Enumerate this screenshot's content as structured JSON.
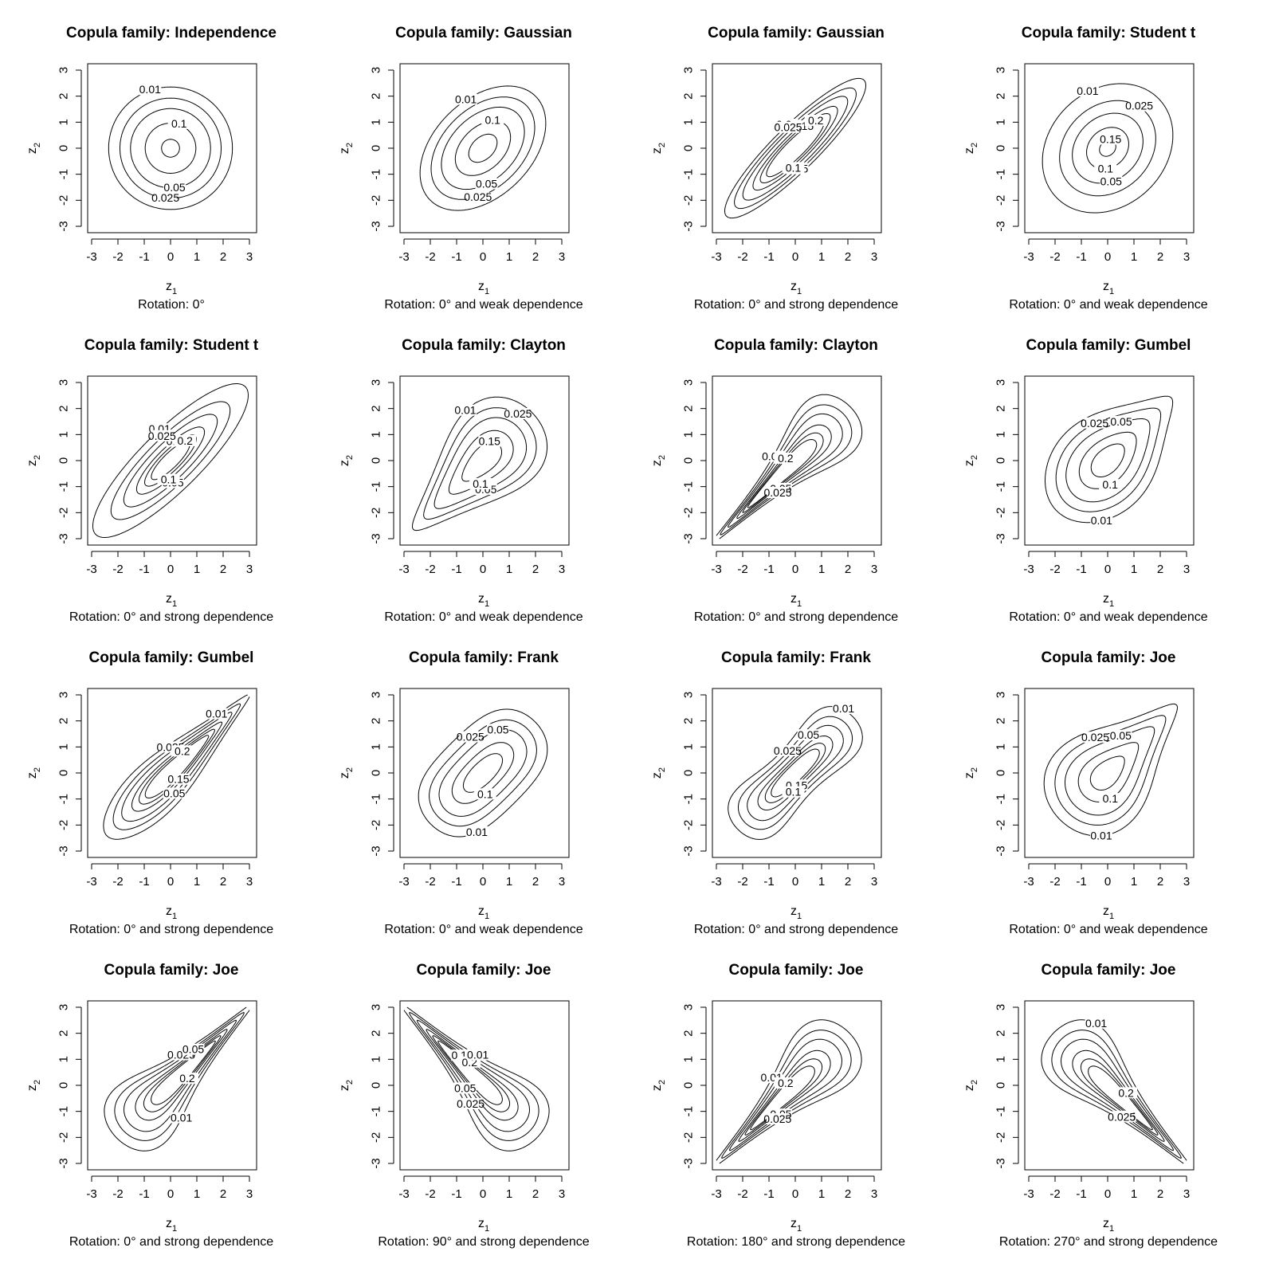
{
  "chart_data": [
    {
      "type": "contour",
      "title": "Copula family: Independence",
      "subtitle": "Rotation: 0°",
      "family": "independence",
      "rotation": 0,
      "dependence": "",
      "levels": [
        0.01,
        0.025,
        0.05,
        0.1,
        0.15
      ],
      "labeled_levels": [
        "0.01",
        "0.05",
        "0.1",
        "0.025"
      ],
      "xlabel": "z1",
      "ylabel": "z2",
      "xlim": [
        -3,
        3
      ],
      "ylim": [
        -3,
        3
      ],
      "xticks": [
        -3,
        -2,
        -1,
        0,
        1,
        2,
        3
      ],
      "yticks": [
        -3,
        -2,
        -1,
        0,
        1,
        2,
        3
      ]
    },
    {
      "type": "contour",
      "title": "Copula family: Gaussian",
      "subtitle": "Rotation: 0° and weak dependence",
      "family": "gaussian",
      "rotation": 0,
      "dependence": "weak",
      "levels": [
        0.01,
        0.025,
        0.05,
        0.1,
        0.15
      ],
      "labeled_levels": [
        "0.01",
        "0.05",
        "0.1",
        "0.025"
      ],
      "xlabel": "z1",
      "ylabel": "z2",
      "xlim": [
        -3,
        3
      ],
      "ylim": [
        -3,
        3
      ],
      "xticks": [
        -3,
        -2,
        -1,
        0,
        1,
        2,
        3
      ],
      "yticks": [
        -3,
        -2,
        -1,
        0,
        1,
        2,
        3
      ]
    },
    {
      "type": "contour",
      "title": "Copula family: Gaussian",
      "subtitle": "Rotation: 0° and strong dependence",
      "family": "gaussian",
      "rotation": 0,
      "dependence": "strong",
      "levels": [
        0.01,
        0.025,
        0.05,
        0.1,
        0.15,
        0.2
      ],
      "labeled_levels": [
        "0.01",
        "0.05",
        "0.15",
        "0.1",
        "0.2",
        "0.025"
      ],
      "xlabel": "z1",
      "ylabel": "z2",
      "xlim": [
        -3,
        3
      ],
      "ylim": [
        -3,
        3
      ],
      "xticks": [
        -3,
        -2,
        -1,
        0,
        1,
        2,
        3
      ],
      "yticks": [
        -3,
        -2,
        -1,
        0,
        1,
        2,
        3
      ]
    },
    {
      "type": "contour",
      "title": "Copula family: Student t",
      "subtitle": "Rotation: 0° and weak dependence",
      "family": "student",
      "rotation": 0,
      "dependence": "weak",
      "levels": [
        0.01,
        0.025,
        0.05,
        0.1,
        0.15
      ],
      "labeled_levels": [
        "0.01",
        "0.05",
        "0.15",
        "0.1",
        "0.025"
      ],
      "xlabel": "z1",
      "ylabel": "z2",
      "xlim": [
        -3,
        3
      ],
      "ylim": [
        -3,
        3
      ],
      "xticks": [
        -3,
        -2,
        -1,
        0,
        1,
        2,
        3
      ],
      "yticks": [
        -3,
        -2,
        -1,
        0,
        1,
        2,
        3
      ]
    },
    {
      "type": "contour",
      "title": "Copula family: Student t",
      "subtitle": "Rotation: 0° and strong dependence",
      "family": "student",
      "rotation": 0,
      "dependence": "strong",
      "levels": [
        0.01,
        0.025,
        0.05,
        0.1,
        0.15,
        0.2
      ],
      "labeled_levels": [
        "0.01",
        "0.05",
        "0.15",
        "0.1",
        "0.2",
        "0.025"
      ],
      "xlabel": "z1",
      "ylabel": "z2",
      "xlim": [
        -3,
        3
      ],
      "ylim": [
        -3,
        3
      ],
      "xticks": [
        -3,
        -2,
        -1,
        0,
        1,
        2,
        3
      ],
      "yticks": [
        -3,
        -2,
        -1,
        0,
        1,
        2,
        3
      ]
    },
    {
      "type": "contour",
      "title": "Copula family: Clayton",
      "subtitle": "Rotation: 0° and weak dependence",
      "family": "clayton",
      "rotation": 0,
      "dependence": "weak",
      "levels": [
        0.01,
        0.025,
        0.05,
        0.1,
        0.15
      ],
      "labeled_levels": [
        "0.01",
        "0.05",
        "0.15",
        "0.1",
        "0.025"
      ],
      "xlabel": "z1",
      "ylabel": "z2",
      "xlim": [
        -3,
        3
      ],
      "ylim": [
        -3,
        3
      ],
      "xticks": [
        -3,
        -2,
        -1,
        0,
        1,
        2,
        3
      ],
      "yticks": [
        -3,
        -2,
        -1,
        0,
        1,
        2,
        3
      ]
    },
    {
      "type": "contour",
      "title": "Copula family: Clayton",
      "subtitle": "Rotation: 0° and strong dependence",
      "family": "clayton",
      "rotation": 0,
      "dependence": "strong",
      "levels": [
        0.01,
        0.025,
        0.05,
        0.1,
        0.15,
        0.2
      ],
      "labeled_levels": [
        "0.01",
        "0.05",
        "0.2",
        "0.025"
      ],
      "xlabel": "z1",
      "ylabel": "z2",
      "xlim": [
        -3,
        3
      ],
      "ylim": [
        -3,
        3
      ],
      "xticks": [
        -3,
        -2,
        -1,
        0,
        1,
        2,
        3
      ],
      "yticks": [
        -3,
        -2,
        -1,
        0,
        1,
        2,
        3
      ]
    },
    {
      "type": "contour",
      "title": "Copula family: Gumbel",
      "subtitle": "Rotation: 0° and weak dependence",
      "family": "gumbel",
      "rotation": 0,
      "dependence": "weak",
      "levels": [
        0.01,
        0.025,
        0.05,
        0.1,
        0.15
      ],
      "labeled_levels": [
        "0.025",
        "0.1",
        "0.05",
        "0.01"
      ],
      "xlabel": "z1",
      "ylabel": "z2",
      "xlim": [
        -3,
        3
      ],
      "ylim": [
        -3,
        3
      ],
      "xticks": [
        -3,
        -2,
        -1,
        0,
        1,
        2,
        3
      ],
      "yticks": [
        -3,
        -2,
        -1,
        0,
        1,
        2,
        3
      ]
    },
    {
      "type": "contour",
      "title": "Copula family: Gumbel",
      "subtitle": "Rotation: 0° and strong dependence",
      "family": "gumbel",
      "rotation": 0,
      "dependence": "strong",
      "levels": [
        0.01,
        0.025,
        0.05,
        0.1,
        0.15,
        0.2
      ],
      "labeled_levels": [
        "0.025",
        "0.15",
        "0.2",
        "0.05",
        "0.01"
      ],
      "xlabel": "z1",
      "ylabel": "z2",
      "xlim": [
        -3,
        3
      ],
      "ylim": [
        -3,
        3
      ],
      "xticks": [
        -3,
        -2,
        -1,
        0,
        1,
        2,
        3
      ],
      "yticks": [
        -3,
        -2,
        -1,
        0,
        1,
        2,
        3
      ]
    },
    {
      "type": "contour",
      "title": "Copula family: Frank",
      "subtitle": "Rotation: 0° and weak dependence",
      "family": "frank",
      "rotation": 0,
      "dependence": "weak",
      "levels": [
        0.01,
        0.025,
        0.05,
        0.1,
        0.15
      ],
      "labeled_levels": [
        "0.025",
        "0.1",
        "0.05",
        "0.01"
      ],
      "xlabel": "z1",
      "ylabel": "z2",
      "xlim": [
        -3,
        3
      ],
      "ylim": [
        -3,
        3
      ],
      "xticks": [
        -3,
        -2,
        -1,
        0,
        1,
        2,
        3
      ],
      "yticks": [
        -3,
        -2,
        -1,
        0,
        1,
        2,
        3
      ]
    },
    {
      "type": "contour",
      "title": "Copula family: Frank",
      "subtitle": "Rotation: 0° and strong dependence",
      "family": "frank",
      "rotation": 0,
      "dependence": "strong",
      "levels": [
        0.01,
        0.025,
        0.05,
        0.1,
        0.15,
        0.2
      ],
      "labeled_levels": [
        "0.025",
        "0.15",
        "0.05",
        "0.1",
        "0.01"
      ],
      "xlabel": "z1",
      "ylabel": "z2",
      "xlim": [
        -3,
        3
      ],
      "ylim": [
        -3,
        3
      ],
      "xticks": [
        -3,
        -2,
        -1,
        0,
        1,
        2,
        3
      ],
      "yticks": [
        -3,
        -2,
        -1,
        0,
        1,
        2,
        3
      ]
    },
    {
      "type": "contour",
      "title": "Copula family: Joe",
      "subtitle": "Rotation: 0° and weak dependence",
      "family": "joe",
      "rotation": 0,
      "dependence": "weak",
      "levels": [
        0.01,
        0.025,
        0.05,
        0.1,
        0.15
      ],
      "labeled_levels": [
        "0.025",
        "0.1",
        "0.05",
        "0.01"
      ],
      "xlabel": "z1",
      "ylabel": "z2",
      "xlim": [
        -3,
        3
      ],
      "ylim": [
        -3,
        3
      ],
      "xticks": [
        -3,
        -2,
        -1,
        0,
        1,
        2,
        3
      ],
      "yticks": [
        -3,
        -2,
        -1,
        0,
        1,
        2,
        3
      ]
    },
    {
      "type": "contour",
      "title": "Copula family: Joe",
      "subtitle": "Rotation: 0° and strong dependence",
      "family": "joe",
      "rotation": 0,
      "dependence": "strong",
      "levels": [
        0.01,
        0.025,
        0.05,
        0.1,
        0.15,
        0.2
      ],
      "labeled_levels": [
        "0.025",
        "0.2",
        "0.05",
        "0.01"
      ],
      "xlabel": "z1",
      "ylabel": "z2",
      "xlim": [
        -3,
        3
      ],
      "ylim": [
        -3,
        3
      ],
      "xticks": [
        -3,
        -2,
        -1,
        0,
        1,
        2,
        3
      ],
      "yticks": [
        -3,
        -2,
        -1,
        0,
        1,
        2,
        3
      ]
    },
    {
      "type": "contour",
      "title": "Copula family: Joe",
      "subtitle": "Rotation: 90° and strong dependence",
      "family": "joe",
      "rotation": 90,
      "dependence": "strong",
      "levels": [
        0.01,
        0.025,
        0.05,
        0.1,
        0.15,
        0.2
      ],
      "labeled_levels": [
        "0.15",
        "0.025",
        "0.2",
        "0.05",
        "0.01"
      ],
      "xlabel": "z1",
      "ylabel": "z2",
      "xlim": [
        -3,
        3
      ],
      "ylim": [
        -3,
        3
      ],
      "xticks": [
        -3,
        -2,
        -1,
        0,
        1,
        2,
        3
      ],
      "yticks": [
        -3,
        -2,
        -1,
        0,
        1,
        2,
        3
      ]
    },
    {
      "type": "contour",
      "title": "Copula family: Joe",
      "subtitle": "Rotation: 180° and strong dependence",
      "family": "joe",
      "rotation": 180,
      "dependence": "strong",
      "levels": [
        0.01,
        0.025,
        0.05,
        0.1,
        0.15,
        0.2
      ],
      "labeled_levels": [
        "0.01",
        "0.05",
        "0.2",
        "0.025"
      ],
      "xlabel": "z1",
      "ylabel": "z2",
      "xlim": [
        -3,
        3
      ],
      "ylim": [
        -3,
        3
      ],
      "xticks": [
        -3,
        -2,
        -1,
        0,
        1,
        2,
        3
      ],
      "yticks": [
        -3,
        -2,
        -1,
        0,
        1,
        2,
        3
      ]
    },
    {
      "type": "contour",
      "title": "Copula family: Joe",
      "subtitle": "Rotation: 270° and strong dependence",
      "family": "joe",
      "rotation": 270,
      "dependence": "strong",
      "levels": [
        0.01,
        0.025,
        0.05,
        0.1,
        0.15,
        0.2
      ],
      "labeled_levels": [
        "0.01",
        "0.05",
        "0.2",
        "0.025"
      ],
      "xlabel": "z1",
      "ylabel": "z2",
      "xlim": [
        -3,
        3
      ],
      "ylim": [
        -3,
        3
      ],
      "xticks": [
        -3,
        -2,
        -1,
        0,
        1,
        2,
        3
      ],
      "yticks": [
        -3,
        -2,
        -1,
        0,
        1,
        2,
        3
      ]
    }
  ]
}
